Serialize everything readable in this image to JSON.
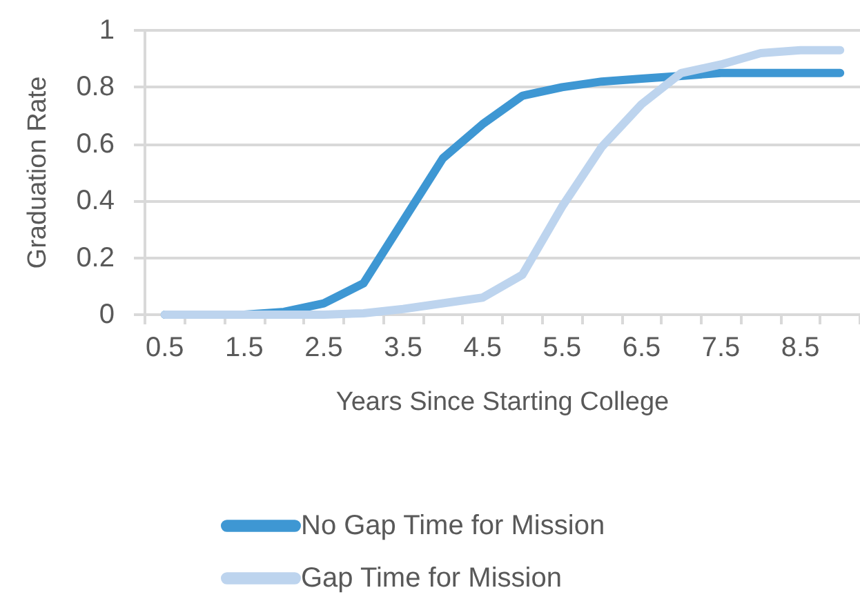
{
  "chart_data": {
    "type": "line",
    "xlabel": "Years Since Starting College",
    "ylabel": "Graduation Rate",
    "categories": [
      "0.5",
      null,
      "1.5",
      null,
      "2.5",
      null,
      "3.5",
      null,
      "4.5",
      null,
      "5.5",
      null,
      "6.5",
      null,
      "7.5",
      null,
      "8.5",
      null
    ],
    "series": [
      {
        "name": "No Gap Time for Mission",
        "color": "#3e97d3",
        "values": [
          0,
          0,
          0,
          0.01,
          0.04,
          0.11,
          0.33,
          0.55,
          0.67,
          0.77,
          0.8,
          0.82,
          0.83,
          0.84,
          0.85,
          0.85,
          0.85,
          0.85
        ]
      },
      {
        "name": "Gap Time for Mission",
        "color": "#bdd4ee",
        "values": [
          0,
          0,
          0,
          0,
          0,
          0.005,
          0.02,
          0.04,
          0.06,
          0.14,
          0.38,
          0.59,
          0.74,
          0.85,
          0.88,
          0.92,
          0.93,
          0.93
        ]
      }
    ],
    "ylim": [
      0,
      1
    ],
    "yticks": [
      0,
      0.2,
      0.4,
      0.6,
      0.8,
      1
    ],
    "grid": "y",
    "legend": "bottom",
    "marker": "none",
    "line_style": "solid"
  }
}
